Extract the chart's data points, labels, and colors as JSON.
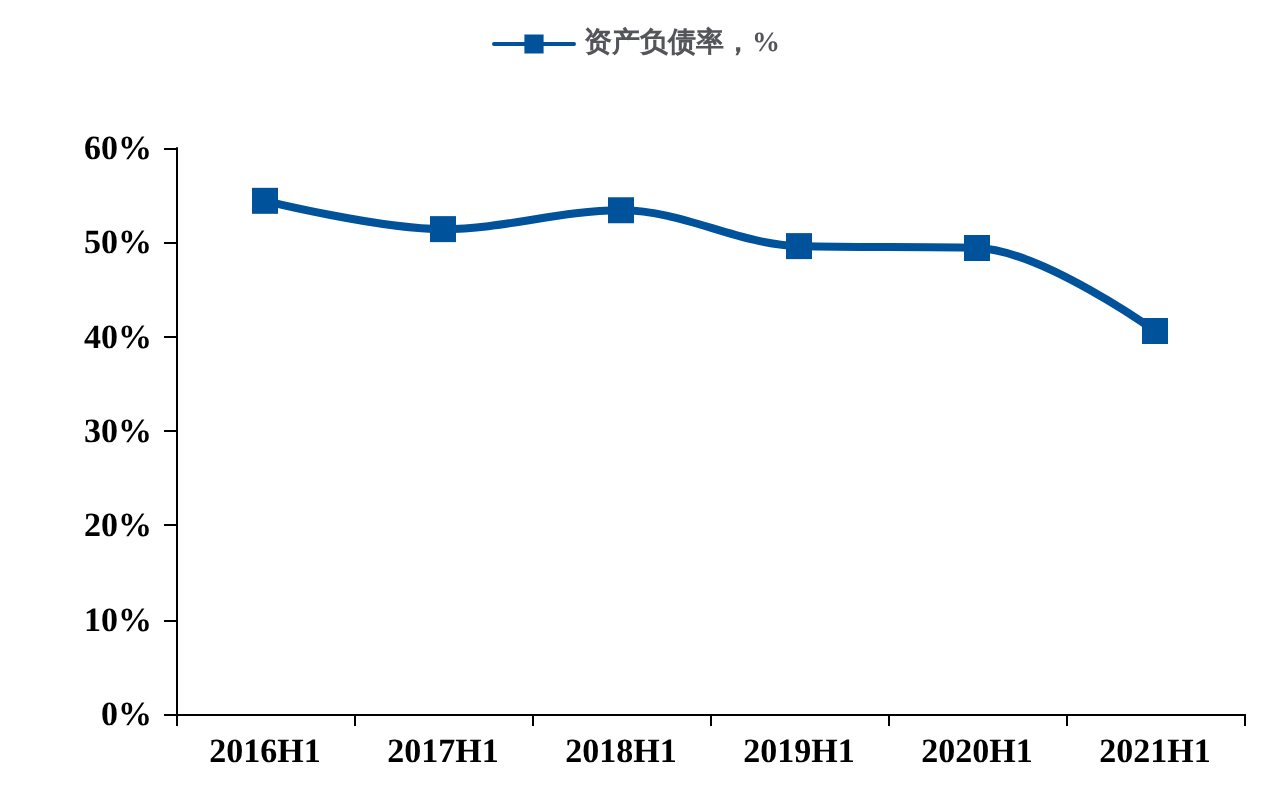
{
  "chart_data": {
    "type": "line",
    "categories": [
      "2016H1",
      "2017H1",
      "2018H1",
      "2019H1",
      "2020H1",
      "2021H1"
    ],
    "series": [
      {
        "name": "资产负债率，%",
        "color": "#00529b",
        "values": [
          54.4,
          51.4,
          53.4,
          49.6,
          49.4,
          40.6
        ]
      }
    ],
    "ylim": [
      0,
      60
    ],
    "yticks": [
      {
        "value": 0,
        "label": "0%"
      },
      {
        "value": 10,
        "label": "10%"
      },
      {
        "value": 20,
        "label": "20%"
      },
      {
        "value": 30,
        "label": "30%"
      },
      {
        "value": 40,
        "label": "40%"
      },
      {
        "value": 50,
        "label": "50%"
      },
      {
        "value": 60,
        "label": "60%"
      }
    ],
    "grid": false,
    "legend": "top",
    "marker": "square",
    "line_style": "solid"
  }
}
